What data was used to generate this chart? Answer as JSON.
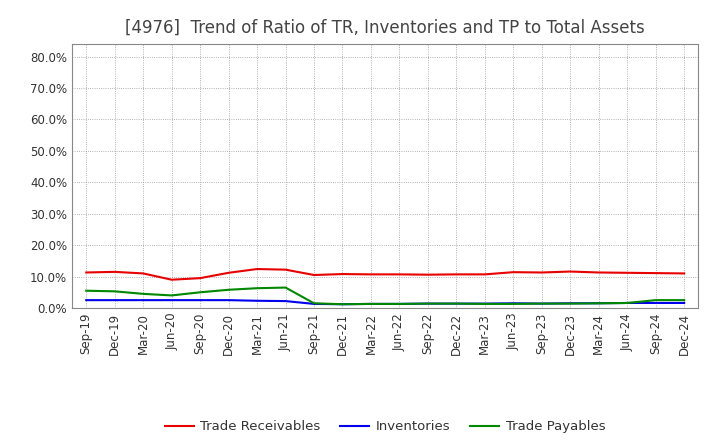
{
  "title": "[4976]  Trend of Ratio of TR, Inventories and TP to Total Assets",
  "x_labels": [
    "Sep-19",
    "Dec-19",
    "Mar-20",
    "Jun-20",
    "Sep-20",
    "Dec-20",
    "Mar-21",
    "Jun-21",
    "Sep-21",
    "Dec-21",
    "Mar-22",
    "Jun-22",
    "Sep-22",
    "Dec-22",
    "Mar-23",
    "Jun-23",
    "Sep-23",
    "Dec-23",
    "Mar-24",
    "Jun-24",
    "Sep-24",
    "Dec-24"
  ],
  "trade_receivables": [
    0.113,
    0.115,
    0.11,
    0.09,
    0.095,
    0.112,
    0.124,
    0.122,
    0.105,
    0.108,
    0.107,
    0.107,
    0.106,
    0.107,
    0.107,
    0.114,
    0.113,
    0.116,
    0.113,
    0.112,
    0.111,
    0.11
  ],
  "inventories": [
    0.025,
    0.025,
    0.025,
    0.025,
    0.025,
    0.025,
    0.023,
    0.022,
    0.013,
    0.012,
    0.013,
    0.013,
    0.014,
    0.014,
    0.014,
    0.015,
    0.014,
    0.015,
    0.015,
    0.016,
    0.016,
    0.016
  ],
  "trade_payables": [
    0.055,
    0.053,
    0.045,
    0.04,
    0.05,
    0.058,
    0.063,
    0.065,
    0.015,
    0.012,
    0.013,
    0.013,
    0.014,
    0.014,
    0.013,
    0.013,
    0.014,
    0.014,
    0.015,
    0.016,
    0.025,
    0.025
  ],
  "ylim": [
    0.0,
    0.84
  ],
  "yticks": [
    0.0,
    0.1,
    0.2,
    0.3,
    0.4,
    0.5,
    0.6,
    0.7,
    0.8
  ],
  "line_color_tr": "#e80000",
  "line_color_inv": "#0000ee",
  "line_color_tp": "#008800",
  "legend_labels": [
    "Trade Receivables",
    "Inventories",
    "Trade Payables"
  ],
  "background_color": "#ffffff",
  "plot_bg_color": "#ffffff",
  "grid_color": "#999999",
  "title_fontsize": 12,
  "title_color": "#444444",
  "tick_fontsize": 8.5,
  "legend_fontsize": 9.5,
  "linewidth": 1.5
}
